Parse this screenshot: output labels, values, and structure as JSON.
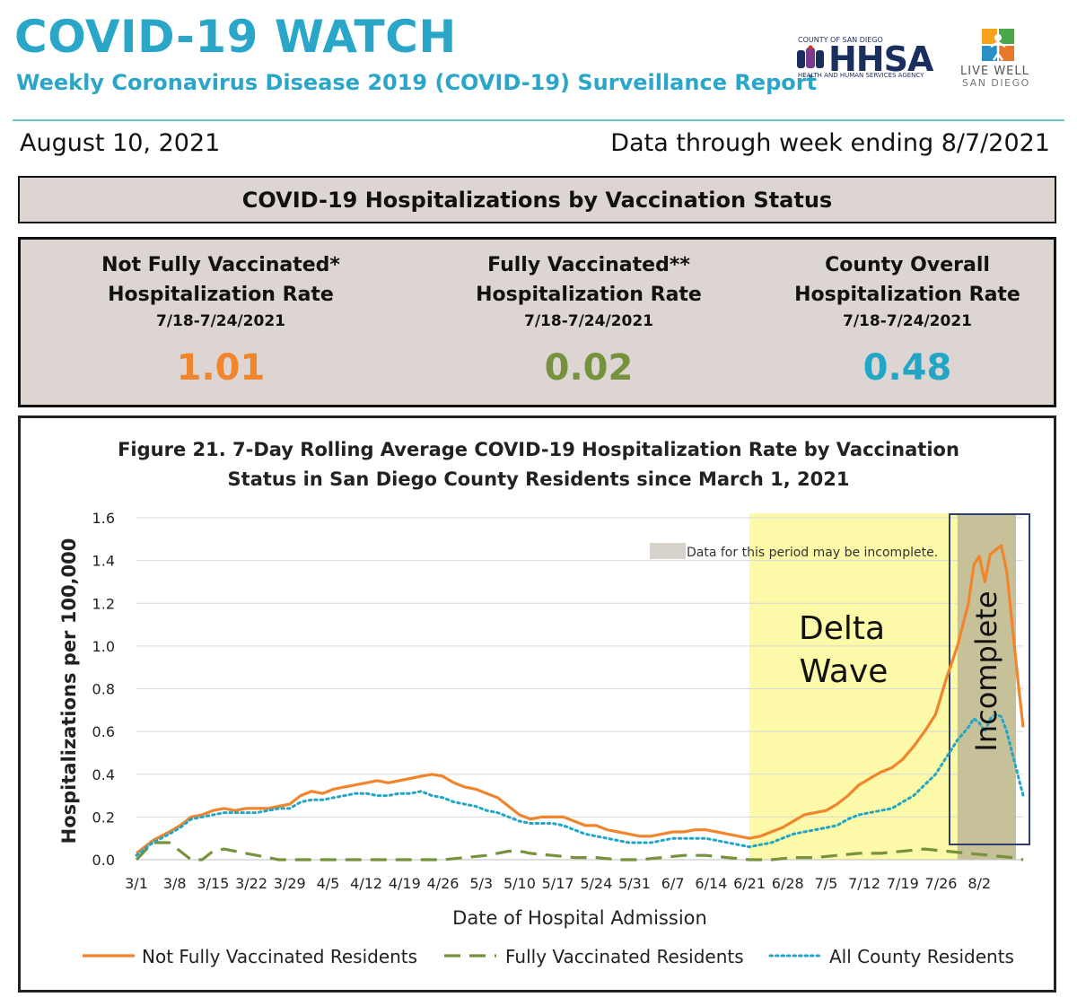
{
  "header": {
    "title": "COVID-19 WATCH",
    "subtitle": "Weekly Coronavirus Disease 2019 (COVID-19) Surveillance Report",
    "report_date": "August 10, 2021",
    "data_through": "Data through week ending 8/7/2021"
  },
  "logos": {
    "hhsa_county": "COUNTY OF SAN DIEGO",
    "hhsa_name": "HHSA",
    "hhsa_agency": "HEALTH AND HUMAN SERVICES AGENCY",
    "livewell_line1": "LIVE WELL",
    "livewell_line2": "SAN DIEGO"
  },
  "status_title": "COVID-19 Hospitalizations by Vaccination Status",
  "rates": [
    {
      "line1": "Not Fully Vaccinated*",
      "line2": "Hospitalization Rate",
      "period": "7/18-7/24/2021",
      "value": "1.01",
      "color": "#f0852d"
    },
    {
      "line1": "Fully Vaccinated**",
      "line2": "Hospitalization Rate",
      "period": "7/18-7/24/2021",
      "value": "0.02",
      "color": "#76923c"
    },
    {
      "line1": "County Overall",
      "line2": "Hospitalization Rate",
      "period": "7/18-7/24/2021",
      "value": "0.48",
      "color": "#23a5c5"
    }
  ],
  "figure": {
    "title_line1": "Figure 21. 7-Day Rolling Average COVID-19 Hospitalization Rate by Vaccination",
    "title_line2": "Status in San Diego County Residents since March 1, 2021"
  },
  "chart_data": {
    "type": "line",
    "xlabel": "Date of Hospital Admission",
    "ylabel": "Hospitalizations per 100,000",
    "ylim": [
      0,
      1.6
    ],
    "yticks": [
      "0.0",
      "0.2",
      "0.4",
      "0.6",
      "0.8",
      "1.0",
      "1.2",
      "1.4",
      "1.6"
    ],
    "xtick_labels": [
      "3/1",
      "3/8",
      "3/15",
      "3/22",
      "3/29",
      "4/5",
      "4/12",
      "4/19",
      "4/26",
      "5/3",
      "5/10",
      "5/17",
      "5/24",
      "5/31",
      "6/7",
      "6/14",
      "6/21",
      "6/28",
      "7/5",
      "7/12",
      "7/19",
      "7/26",
      "8/2"
    ],
    "x_range_days": [
      0,
      162
    ],
    "grid": true,
    "legend_position": "bottom",
    "series": [
      {
        "name": "Not Fully Vaccinated Residents",
        "color": "#f0852d",
        "style": "solid",
        "points": [
          [
            0,
            0.03
          ],
          [
            3,
            0.09
          ],
          [
            6,
            0.13
          ],
          [
            8,
            0.16
          ],
          [
            10,
            0.2
          ],
          [
            12,
            0.21
          ],
          [
            14,
            0.23
          ],
          [
            16,
            0.24
          ],
          [
            18,
            0.23
          ],
          [
            20,
            0.24
          ],
          [
            22,
            0.24
          ],
          [
            24,
            0.24
          ],
          [
            26,
            0.25
          ],
          [
            28,
            0.26
          ],
          [
            30,
            0.3
          ],
          [
            32,
            0.32
          ],
          [
            34,
            0.31
          ],
          [
            36,
            0.33
          ],
          [
            38,
            0.34
          ],
          [
            40,
            0.35
          ],
          [
            42,
            0.36
          ],
          [
            44,
            0.37
          ],
          [
            46,
            0.36
          ],
          [
            48,
            0.37
          ],
          [
            50,
            0.38
          ],
          [
            52,
            0.39
          ],
          [
            54,
            0.4
          ],
          [
            56,
            0.39
          ],
          [
            58,
            0.36
          ],
          [
            60,
            0.34
          ],
          [
            62,
            0.33
          ],
          [
            64,
            0.31
          ],
          [
            66,
            0.29
          ],
          [
            68,
            0.25
          ],
          [
            70,
            0.21
          ],
          [
            72,
            0.19
          ],
          [
            74,
            0.2
          ],
          [
            76,
            0.2
          ],
          [
            78,
            0.2
          ],
          [
            80,
            0.18
          ],
          [
            82,
            0.16
          ],
          [
            84,
            0.16
          ],
          [
            86,
            0.14
          ],
          [
            88,
            0.13
          ],
          [
            90,
            0.12
          ],
          [
            92,
            0.11
          ],
          [
            94,
            0.11
          ],
          [
            96,
            0.12
          ],
          [
            98,
            0.13
          ],
          [
            100,
            0.13
          ],
          [
            102,
            0.14
          ],
          [
            104,
            0.14
          ],
          [
            106,
            0.13
          ],
          [
            108,
            0.12
          ],
          [
            110,
            0.11
          ],
          [
            112,
            0.1
          ],
          [
            114,
            0.11
          ],
          [
            116,
            0.13
          ],
          [
            118,
            0.15
          ],
          [
            120,
            0.18
          ],
          [
            122,
            0.21
          ],
          [
            124,
            0.22
          ],
          [
            126,
            0.23
          ],
          [
            128,
            0.26
          ],
          [
            130,
            0.3
          ],
          [
            132,
            0.35
          ],
          [
            134,
            0.38
          ],
          [
            136,
            0.41
          ],
          [
            138,
            0.43
          ],
          [
            140,
            0.47
          ],
          [
            142,
            0.53
          ],
          [
            144,
            0.6
          ],
          [
            146,
            0.68
          ],
          [
            148,
            0.85
          ],
          [
            150,
            1.0
          ],
          [
            152,
            1.2
          ],
          [
            153,
            1.38
          ],
          [
            154,
            1.42
          ],
          [
            155,
            1.3
          ],
          [
            156,
            1.43
          ],
          [
            157,
            1.45
          ],
          [
            158,
            1.47
          ],
          [
            159,
            1.35
          ],
          [
            160,
            1.1
          ],
          [
            161,
            0.85
          ],
          [
            162,
            0.62
          ]
        ]
      },
      {
        "name": "Fully Vaccinated Residents",
        "color": "#76923c",
        "style": "dashed",
        "points": [
          [
            0,
            0.0
          ],
          [
            3,
            0.08
          ],
          [
            6,
            0.08
          ],
          [
            8,
            0.04
          ],
          [
            10,
            0.0
          ],
          [
            12,
            0.0
          ],
          [
            14,
            0.04
          ],
          [
            16,
            0.05
          ],
          [
            18,
            0.04
          ],
          [
            20,
            0.03
          ],
          [
            22,
            0.02
          ],
          [
            24,
            0.01
          ],
          [
            26,
            0.0
          ],
          [
            30,
            0.0
          ],
          [
            40,
            0.0
          ],
          [
            50,
            0.0
          ],
          [
            56,
            0.0
          ],
          [
            60,
            0.01
          ],
          [
            64,
            0.02
          ],
          [
            68,
            0.04
          ],
          [
            70,
            0.04
          ],
          [
            72,
            0.03
          ],
          [
            76,
            0.02
          ],
          [
            80,
            0.01
          ],
          [
            84,
            0.01
          ],
          [
            88,
            0.0
          ],
          [
            92,
            0.0
          ],
          [
            96,
            0.01
          ],
          [
            100,
            0.02
          ],
          [
            104,
            0.02
          ],
          [
            108,
            0.01
          ],
          [
            112,
            0.0
          ],
          [
            116,
            0.0
          ],
          [
            120,
            0.01
          ],
          [
            124,
            0.01
          ],
          [
            128,
            0.02
          ],
          [
            132,
            0.03
          ],
          [
            136,
            0.03
          ],
          [
            140,
            0.04
          ],
          [
            144,
            0.05
          ],
          [
            148,
            0.04
          ],
          [
            152,
            0.03
          ],
          [
            156,
            0.02
          ],
          [
            160,
            0.01
          ],
          [
            162,
            0.0
          ]
        ]
      },
      {
        "name": "All County Residents",
        "color": "#23a5c5",
        "style": "dotted",
        "points": [
          [
            0,
            0.02
          ],
          [
            3,
            0.08
          ],
          [
            6,
            0.12
          ],
          [
            8,
            0.15
          ],
          [
            10,
            0.19
          ],
          [
            12,
            0.2
          ],
          [
            14,
            0.21
          ],
          [
            16,
            0.22
          ],
          [
            18,
            0.22
          ],
          [
            20,
            0.22
          ],
          [
            22,
            0.22
          ],
          [
            24,
            0.23
          ],
          [
            26,
            0.24
          ],
          [
            28,
            0.24
          ],
          [
            30,
            0.27
          ],
          [
            32,
            0.28
          ],
          [
            34,
            0.28
          ],
          [
            36,
            0.29
          ],
          [
            38,
            0.3
          ],
          [
            40,
            0.31
          ],
          [
            42,
            0.31
          ],
          [
            44,
            0.3
          ],
          [
            46,
            0.3
          ],
          [
            48,
            0.31
          ],
          [
            50,
            0.31
          ],
          [
            52,
            0.32
          ],
          [
            54,
            0.3
          ],
          [
            56,
            0.29
          ],
          [
            58,
            0.27
          ],
          [
            60,
            0.26
          ],
          [
            62,
            0.25
          ],
          [
            64,
            0.23
          ],
          [
            66,
            0.22
          ],
          [
            68,
            0.2
          ],
          [
            70,
            0.18
          ],
          [
            72,
            0.17
          ],
          [
            74,
            0.17
          ],
          [
            76,
            0.17
          ],
          [
            78,
            0.16
          ],
          [
            80,
            0.14
          ],
          [
            82,
            0.12
          ],
          [
            84,
            0.11
          ],
          [
            86,
            0.1
          ],
          [
            88,
            0.09
          ],
          [
            90,
            0.08
          ],
          [
            92,
            0.08
          ],
          [
            94,
            0.08
          ],
          [
            96,
            0.09
          ],
          [
            98,
            0.1
          ],
          [
            100,
            0.1
          ],
          [
            102,
            0.1
          ],
          [
            104,
            0.1
          ],
          [
            106,
            0.09
          ],
          [
            108,
            0.08
          ],
          [
            110,
            0.07
          ],
          [
            112,
            0.06
          ],
          [
            114,
            0.07
          ],
          [
            116,
            0.08
          ],
          [
            118,
            0.1
          ],
          [
            120,
            0.12
          ],
          [
            122,
            0.13
          ],
          [
            124,
            0.14
          ],
          [
            126,
            0.15
          ],
          [
            128,
            0.16
          ],
          [
            130,
            0.19
          ],
          [
            132,
            0.21
          ],
          [
            134,
            0.22
          ],
          [
            136,
            0.23
          ],
          [
            138,
            0.24
          ],
          [
            140,
            0.27
          ],
          [
            142,
            0.3
          ],
          [
            144,
            0.35
          ],
          [
            146,
            0.4
          ],
          [
            148,
            0.48
          ],
          [
            150,
            0.56
          ],
          [
            152,
            0.62
          ],
          [
            153,
            0.66
          ],
          [
            154,
            0.64
          ],
          [
            155,
            0.6
          ],
          [
            156,
            0.66
          ],
          [
            157,
            0.68
          ],
          [
            158,
            0.67
          ],
          [
            159,
            0.6
          ],
          [
            160,
            0.5
          ],
          [
            161,
            0.4
          ],
          [
            162,
            0.3
          ]
        ]
      }
    ],
    "annotations": {
      "delta_wave_start_day": 112,
      "delta_wave_text_line1": "Delta",
      "delta_wave_text_line2": "Wave",
      "incomplete_start_day": 150,
      "incomplete_text": "Incomplete",
      "incomplete_legend_text": "Data for this period may be incomplete."
    },
    "shade_colors": {
      "delta": "#fcf9a8",
      "incomplete": "#c7c19a"
    }
  }
}
